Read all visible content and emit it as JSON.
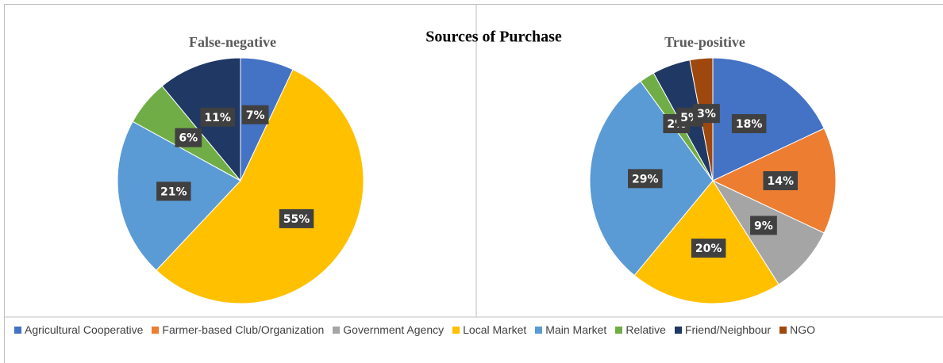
{
  "title": "Sources of Purchase",
  "chart_data": [
    {
      "type": "pie",
      "title": "False-negative",
      "categories": [
        "Agricultural Cooperative",
        "Local Market",
        "Main Market",
        "Relative",
        "Friend/Neighbour"
      ],
      "values": [
        7,
        55,
        21,
        6,
        11
      ],
      "value_labels": [
        "7%",
        "55%",
        "21%",
        "6%",
        "11%"
      ],
      "colors": [
        "#4472c4",
        "#ffc000",
        "#5b9bd5",
        "#70ad47",
        "#203864"
      ]
    },
    {
      "type": "pie",
      "title": "True-positive",
      "categories": [
        "Agricultural Cooperative",
        "Farmer-based Club/Organization",
        "Government Agency",
        "Local Market",
        "Main Market",
        "Relative",
        "Friend/Neighbour",
        "NGO"
      ],
      "values": [
        18,
        14,
        9,
        20,
        29,
        2,
        5,
        3
      ],
      "value_labels": [
        "18%",
        "14%",
        "9%",
        "20%",
        "29%",
        "2%",
        "5%",
        "3%"
      ],
      "colors": [
        "#4472c4",
        "#ed7d31",
        "#a5a5a5",
        "#ffc000",
        "#5b9bd5",
        "#70ad47",
        "#203864",
        "#9e480e"
      ]
    }
  ],
  "legend": [
    {
      "name": "Agricultural Cooperative",
      "color": "#4472c4"
    },
    {
      "name": "Farmer-based Club/Organization",
      "color": "#ed7d31"
    },
    {
      "name": "Government Agency",
      "color": "#a5a5a5"
    },
    {
      "name": "Local Market",
      "color": "#ffc000"
    },
    {
      "name": "Main Market",
      "color": "#5b9bd5"
    },
    {
      "name": "Relative",
      "color": "#70ad47"
    },
    {
      "name": "Friend/Neighbour",
      "color": "#203864"
    },
    {
      "name": "NGO",
      "color": "#9e480e"
    }
  ]
}
